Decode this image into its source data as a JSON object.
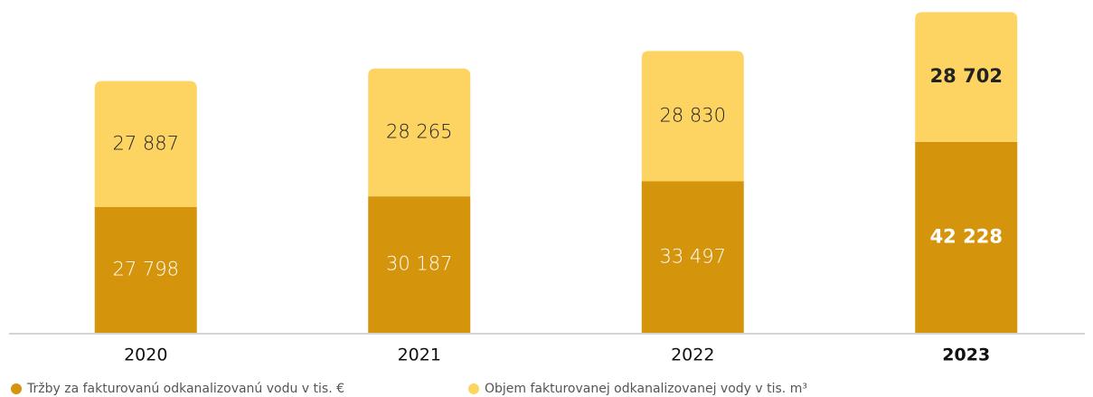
{
  "chart_data": {
    "type": "stacked-bar",
    "categories": [
      "2020",
      "2021",
      "2022",
      "2023"
    ],
    "series": [
      {
        "name": "Tržby za fakturovanú odkanalizovanú vodu v tis. €",
        "color": "#d4940c",
        "values": [
          27798,
          30187,
          33497,
          42228
        ],
        "value_labels": [
          "27 798",
          "30 187",
          "33 497",
          "42 228"
        ]
      },
      {
        "name": "Objem fakturovanej odkanalizovanej vody v tis. m³",
        "color": "#fdd462",
        "values": [
          27887,
          28265,
          28830,
          28702
        ],
        "value_labels": [
          "27 887",
          "28 265",
          "28 830",
          "28 702"
        ]
      }
    ],
    "ylim": [
      0,
      72000
    ]
  }
}
